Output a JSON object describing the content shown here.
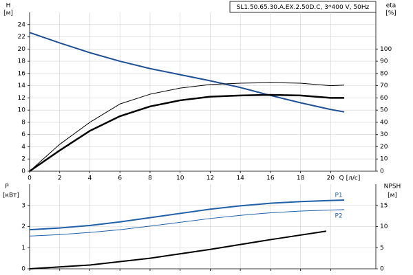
{
  "chart_data": [
    {
      "type": "line",
      "title": "SL1.50.65.30.A.EX.2.50D.C, 3*400 V, 50Hz",
      "xlabel": "Q [л/с]",
      "ylabel": "H",
      "yunit": "[м]",
      "y2label": "eta",
      "y2unit": "[%]",
      "xlim": [
        0,
        23
      ],
      "xticks": [
        0,
        2,
        4,
        6,
        8,
        10,
        12,
        14,
        16,
        18,
        20
      ],
      "ylim": [
        0,
        26
      ],
      "yticks": [
        0,
        2,
        4,
        6,
        8,
        10,
        12,
        14,
        16,
        18,
        20,
        22,
        24
      ],
      "y2lim": [
        0,
        130
      ],
      "y2ticks": [
        0,
        10,
        20,
        30,
        40,
        50,
        60,
        70,
        80,
        90,
        100
      ],
      "grid": true,
      "x": [
        0,
        2,
        4,
        6,
        8,
        10,
        12,
        14,
        16,
        18,
        20,
        20.9
      ],
      "series": [
        {
          "color": "#1f4f94",
          "linewidth": 2,
          "values": [
            22.7,
            21.0,
            19.4,
            18.0,
            16.8,
            15.8,
            14.8,
            13.7,
            12.4,
            11.2,
            10.1,
            9.7
          ]
        },
        {
          "color": "#000000",
          "linewidth": 1,
          "axis": "y2",
          "values": [
            0,
            22,
            40,
            55,
            63,
            68,
            71,
            72,
            72.5,
            72,
            70,
            70.5
          ]
        },
        {
          "color": "#000000",
          "linewidth": 2.5,
          "axis": "y2",
          "values": [
            0,
            17,
            33,
            45,
            53,
            58,
            61,
            62,
            62.5,
            62,
            60,
            60
          ]
        }
      ]
    },
    {
      "type": "line",
      "ylabel": "P",
      "yunit": "[кВт]",
      "y2label": "NPSH",
      "y2unit": "[м]",
      "xlim": [
        0,
        23
      ],
      "xticks": [
        0,
        2,
        4,
        6,
        8,
        10,
        12,
        14,
        16,
        18,
        20
      ],
      "ylim": [
        0,
        4
      ],
      "yticks": [
        0,
        1,
        2,
        3
      ],
      "y2lim": [
        0,
        20
      ],
      "y2ticks": [
        0,
        5,
        10,
        15
      ],
      "grid": true,
      "x": [
        0,
        2,
        4,
        6,
        8,
        10,
        12,
        14,
        16,
        18,
        20,
        20.9
      ],
      "series": [
        {
          "name": "P1",
          "color": "#1f5fa8",
          "linewidth": 2,
          "values": [
            1.85,
            1.93,
            2.05,
            2.22,
            2.42,
            2.62,
            2.82,
            2.98,
            3.1,
            3.18,
            3.23,
            3.25
          ]
        },
        {
          "name": "P2",
          "color": "#1f5fa8",
          "linewidth": 1,
          "values": [
            1.55,
            1.62,
            1.72,
            1.85,
            2.02,
            2.2,
            2.38,
            2.53,
            2.65,
            2.73,
            2.78,
            2.8
          ]
        },
        {
          "color": "#000000",
          "linewidth": 2,
          "axis": "y2",
          "x": [
            0,
            4,
            8,
            12,
            16,
            19.7
          ],
          "values": [
            0,
            0.9,
            2.5,
            4.6,
            6.9,
            8.9
          ]
        }
      ]
    }
  ]
}
